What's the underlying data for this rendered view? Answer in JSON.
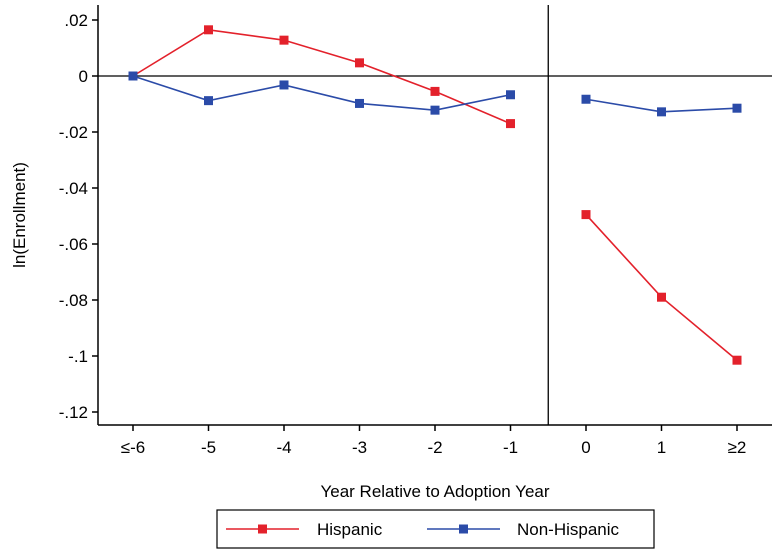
{
  "chart_data": {
    "type": "line",
    "xlabel": "Year Relative to Adoption Year",
    "ylabel": "ln(Enrollment)",
    "categories": [
      "≤-6",
      "-5",
      "-4",
      "-3",
      "-2",
      "-1",
      "0",
      "1",
      "≥2"
    ],
    "yticks": [
      0.02,
      0,
      -0.02,
      -0.04,
      -0.06,
      -0.08,
      -0.1,
      -0.12
    ],
    "ytick_labels": [
      ".02",
      "0",
      "-.02",
      "-.04",
      "-.06",
      "-.08",
      "-.1",
      "-.12"
    ],
    "ylim": [
      -0.125,
      0.025
    ],
    "zero_line": true,
    "event_line_between": [
      "-1",
      "0"
    ],
    "grid": false,
    "legend_position": "bottom",
    "series": [
      {
        "name": "Hispanic",
        "color": "#e3212b",
        "marker": "square",
        "segments": [
          {
            "x": [
              "≤-6",
              "-5",
              "-4",
              "-3",
              "-2",
              "-1"
            ],
            "values": [
              0.0,
              0.0165,
              0.0128,
              0.0047,
              -0.0055,
              -0.017
            ]
          },
          {
            "x": [
              "0",
              "1",
              "≥2"
            ],
            "values": [
              -0.0495,
              -0.079,
              -0.1015
            ]
          }
        ]
      },
      {
        "name": "Non-Hispanic",
        "color": "#2b4ba8",
        "marker": "square",
        "segments": [
          {
            "x": [
              "≤-6",
              "-5",
              "-4",
              "-3",
              "-2",
              "-1"
            ],
            "values": [
              0.0,
              -0.0088,
              -0.0032,
              -0.0098,
              -0.0122,
              -0.0067
            ]
          },
          {
            "x": [
              "0",
              "1",
              "≥2"
            ],
            "values": [
              -0.0083,
              -0.0128,
              -0.0115
            ]
          }
        ]
      }
    ]
  }
}
